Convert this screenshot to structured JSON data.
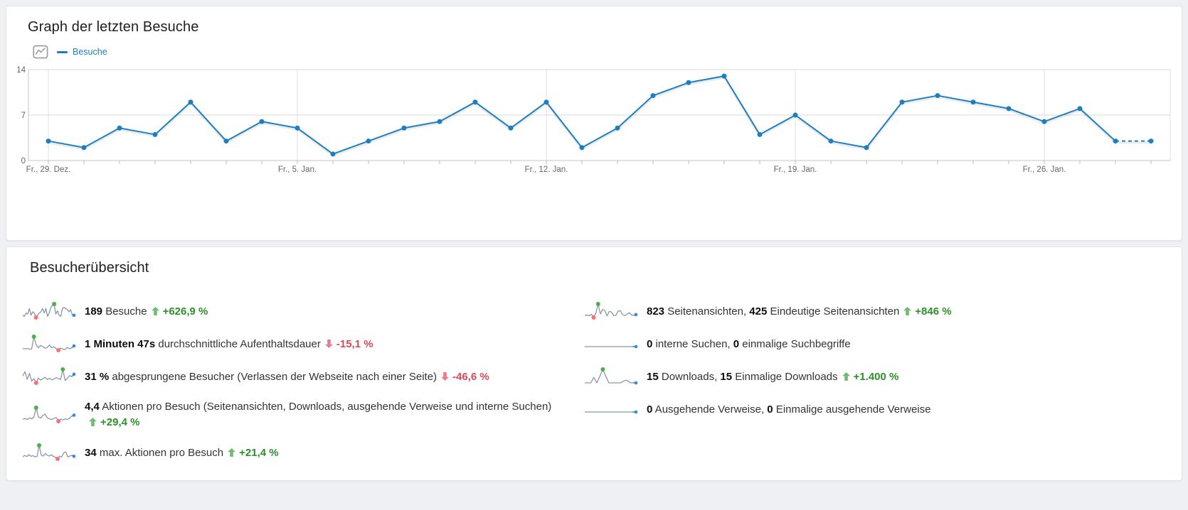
{
  "graph_card": {
    "title": "Graph der letzten Besuche"
  },
  "overview_card": {
    "title": "Besucherübersicht"
  },
  "colors": {
    "series": "#1d7fc0",
    "trend_up_text": "#2c9029",
    "trend_down_text": "#dc4759",
    "trend_up_arrow": "#72bb72",
    "trend_down_arrow": "#ec7a88",
    "spark_line": "#8b96a8",
    "spark_max_dot": "#4cae4c",
    "spark_min_dot": "#ff6f6f",
    "spark_end": "#3788d8",
    "grid_line": "#e0e0e0",
    "axis_line": "#c5c5c5",
    "tick_label": "#666666"
  },
  "chart_data": {
    "type": "line",
    "title": "Graph der letzten Besuche",
    "xlabel": "",
    "ylabel": "",
    "ylim": [
      0,
      14
    ],
    "yticks": [
      0,
      7,
      14
    ],
    "grid": true,
    "legend_position": "top-left",
    "week_tick_indices": [
      0,
      7,
      14,
      21,
      28
    ],
    "x_tick_labels": [
      "Fr., 29. Dez.",
      "Fr., 5. Jan.",
      "Fr., 12. Jan.",
      "Fr., 19. Jan.",
      "Fr., 26. Jan."
    ],
    "dashed_tail_from_index": 30,
    "series": [
      {
        "name": "Besuche",
        "values": [
          3,
          2,
          5,
          4,
          9,
          3,
          6,
          5,
          1,
          3,
          5,
          6,
          9,
          5,
          9,
          2,
          5,
          10,
          12,
          13,
          4,
          7,
          3,
          2,
          9,
          10,
          9,
          8,
          6,
          8,
          3,
          3
        ]
      }
    ]
  },
  "overview": {
    "columns": [
      {
        "rows": [
          {
            "name": "visits",
            "segments": [
              {
                "t": "189",
                "b": true
              },
              {
                "t": " Besuche",
                "b": false
              }
            ],
            "trend": {
              "dir": "up",
              "value": "+626,9 %"
            },
            "sparkline": {
              "v": [
                3,
                2,
                5,
                4,
                9,
                3,
                6,
                5,
                1,
                3,
                5,
                6,
                9,
                5,
                9,
                2,
                5,
                10,
                12,
                13,
                4,
                7,
                3,
                2,
                9,
                10,
                9,
                8,
                6,
                8,
                3,
                3
              ],
              "max": 19,
              "min": 8,
              "end": true
            }
          },
          {
            "name": "avg-time-on-site",
            "segments": [
              {
                "t": "1 Minuten 47s",
                "b": true
              },
              {
                "t": " durchschnittliche Aufenthaltsdauer",
                "b": false
              }
            ],
            "trend": {
              "dir": "down",
              "value": "-15,1 %"
            },
            "sparkline": {
              "v": [
                1.5,
                1.2,
                1.4,
                1.0,
                1.2,
                9.5,
                4.0,
                2.0,
                3.5,
                2.8,
                1.6,
                2.2,
                3.8,
                2.0,
                2.6,
                1.4,
                0.3,
                1.8,
                1.0,
                0.8,
                2.2,
                1.2,
                2.0,
                3.2
              ],
              "max": 5,
              "min": 16,
              "end": true
            }
          },
          {
            "name": "bounce-rate",
            "segments": [
              {
                "t": "31 %",
                "b": true
              },
              {
                "t": " abgesprungene Besucher (Verlassen der Webseite nach einer Seite)",
                "b": false
              }
            ],
            "trend": {
              "dir": "down",
              "value": "-46,6 %"
            },
            "sparkline": {
              "v": [
                5,
                7.5,
                3,
                6.5,
                2,
                3.5,
                1.0,
                3.8,
                2.6,
                3.4,
                4.2,
                3.0,
                3.6,
                2.8,
                3.2,
                4.0,
                3.4,
                3.0,
                8.8,
                2.4,
                3.6,
                5.2,
                4.6,
                6.0
              ],
              "max": 18,
              "min": 6,
              "end": true
            }
          },
          {
            "name": "actions-per-visit",
            "segments": [
              {
                "t": "4,4",
                "b": true
              },
              {
                "t": " Aktionen pro Besuch (Seitenansichten, Downloads, ausgehende Verweise und interne Suchen)",
                "b": false
              }
            ],
            "trend": {
              "dir": "up",
              "value": "+29,4 %",
              "newline": true
            },
            "sparkline": {
              "v": [
                2.2,
                2.6,
                2.0,
                3.0,
                2.4,
                3.4,
                9.0,
                3.6,
                2.8,
                4.4,
                5.2,
                3.0,
                2.4,
                2.0,
                2.6,
                3.2,
                1.0,
                2.2,
                1.8,
                2.4,
                2.0,
                2.8,
                4.0,
                4.6
              ],
              "max": 6,
              "min": 16,
              "end": true
            }
          },
          {
            "name": "max-actions",
            "segments": [
              {
                "t": "34",
                "b": true
              },
              {
                "t": " max. Aktionen pro Besuch",
                "b": false
              }
            ],
            "trend": {
              "dir": "up",
              "value": "+21,4 %"
            },
            "sparkline": {
              "v": [
                2.0,
                3.0,
                2.2,
                3.4,
                2.4,
                2.8,
                2.0,
                2.4,
                9.3,
                3.2,
                2.6,
                4.2,
                3.0,
                2.6,
                3.4,
                2.2,
                1.8,
                0.8,
                2.4,
                2.0,
                4.6,
                5.2,
                2.0,
                2.6,
                3.0,
                2.4
              ],
              "max": 8,
              "min": 17,
              "end": true
            }
          }
        ]
      },
      {
        "rows": [
          {
            "name": "pageviews",
            "segments": [
              {
                "t": "823",
                "b": true
              },
              {
                "t": " Seitenansichten, ",
                "b": false
              },
              {
                "t": "425",
                "b": true
              },
              {
                "t": " Eindeutige Seitenansichten",
                "b": false
              }
            ],
            "trend": {
              "dir": "up",
              "value": "+846 %"
            },
            "sparkline": {
              "v": [
                2.0,
                2.4,
                1.8,
                2.8,
                0.8,
                3.6,
                9.2,
                3.0,
                5.8,
                5.2,
                1.8,
                4.6,
                4.2,
                2.0,
                2.2,
                4.8,
                5.0,
                2.6,
                2.0,
                2.8,
                3.8,
                2.4,
                2.2,
                2.6
              ],
              "max": 6,
              "min": 4,
              "end": true
            }
          },
          {
            "name": "internal-searches",
            "segments": [
              {
                "t": "0",
                "b": true
              },
              {
                "t": " interne Suchen, ",
                "b": false
              },
              {
                "t": "0",
                "b": true
              },
              {
                "t": " einmalige Suchbegriffe",
                "b": false
              }
            ],
            "trend": null,
            "sparkline": {
              "v": [
                0,
                0,
                0,
                0,
                0,
                0,
                0,
                0,
                0,
                0,
                0,
                0,
                0,
                0,
                0,
                0
              ],
              "max": null,
              "min": null,
              "end": true
            }
          },
          {
            "name": "downloads",
            "segments": [
              {
                "t": "15",
                "b": true
              },
              {
                "t": " Downloads, ",
                "b": false
              },
              {
                "t": "15",
                "b": true
              },
              {
                "t": " Einmalige Downloads",
                "b": false
              }
            ],
            "trend": {
              "dir": "up",
              "value": "+1.400 %"
            },
            "sparkline": {
              "v": [
                0.3,
                0.3,
                0.3,
                3.8,
                0.3,
                4.5,
                9.0,
                4.5,
                0.3,
                0.3,
                0.3,
                0.3,
                0.3,
                1.6,
                2.0,
                0.4,
                0.3,
                0.3
              ],
              "max": 6,
              "min": null,
              "end": true
            }
          },
          {
            "name": "outlinks",
            "segments": [
              {
                "t": "0",
                "b": true
              },
              {
                "t": " Ausgehende Verweise, ",
                "b": false
              },
              {
                "t": "0",
                "b": true
              },
              {
                "t": " Einmalige ausgehende Verweise",
                "b": false
              }
            ],
            "trend": null,
            "sparkline": {
              "v": [
                0,
                0,
                0,
                0,
                0,
                0,
                0,
                0,
                0,
                0,
                0,
                0,
                0,
                0,
                0,
                0
              ],
              "max": null,
              "min": null,
              "end": true
            }
          }
        ]
      }
    ]
  }
}
